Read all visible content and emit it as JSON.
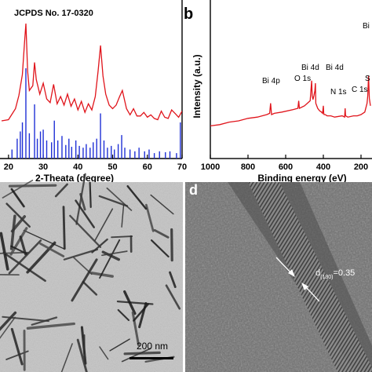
{
  "panel_a": {
    "reference_label": "JCPDS No. 17-0320",
    "xlabel": "2-Theata (degree)",
    "x_ticks": [
      "20",
      "30",
      "40",
      "50",
      "60",
      "70"
    ]
  },
  "panel_b": {
    "letter": "b",
    "ylabel": "Intensity (a.u.)",
    "xlabel": "Binding energy (eV)",
    "x_ticks": [
      "1000",
      "800",
      "600",
      "400",
      "200"
    ],
    "annotations": [
      "Bi 4p",
      "O 1s",
      "Bi 4d",
      "Bi 4d",
      "N 1s",
      "C 1s",
      "S",
      "Bi"
    ]
  },
  "panel_c": {
    "scale_bar": "200 nm"
  },
  "panel_d": {
    "letter": "d",
    "d_symbol": "d",
    "d_subscript": "(130)",
    "d_value": "=0.35"
  },
  "chart_data": [
    {
      "type": "line",
      "panel": "a",
      "xlabel": "2-Theata (degree)",
      "xlim": [
        18,
        70
      ],
      "series": [
        {
          "x": [
            18,
            20,
            22,
            23,
            24,
            24.6,
            25,
            25.5,
            26,
            27,
            27.5,
            28,
            29,
            30,
            31,
            32,
            33,
            34,
            35,
            36,
            37,
            38,
            39,
            40,
            41,
            42,
            43,
            44,
            45,
            45.8,
            46.5,
            47.2,
            48,
            49,
            50,
            51,
            52,
            52.8,
            54,
            55,
            56,
            57,
            58,
            59,
            60,
            61,
            62,
            63,
            64,
            65,
            66,
            67,
            68,
            69,
            70
          ],
          "y": [
            0.2,
            0.22,
            0.3,
            0.42,
            0.58,
            0.85,
            1.0,
            0.62,
            0.45,
            0.5,
            0.68,
            0.55,
            0.42,
            0.52,
            0.38,
            0.36,
            0.5,
            0.35,
            0.4,
            0.34,
            0.42,
            0.33,
            0.38,
            0.3,
            0.36,
            0.28,
            0.34,
            0.3,
            0.4,
            0.62,
            0.82,
            0.58,
            0.42,
            0.34,
            0.3,
            0.34,
            0.4,
            0.46,
            0.3,
            0.26,
            0.3,
            0.25,
            0.24,
            0.28,
            0.23,
            0.26,
            0.22,
            0.22,
            0.28,
            0.24,
            0.22,
            0.3,
            0.26,
            0.24,
            0.28
          ]
        }
      ],
      "reference_peaks": {
        "x": [
          21,
          22.5,
          23.4,
          24,
          25,
          26,
          27.5,
          28.3,
          29.2,
          30,
          31,
          32.4,
          33.2,
          34.2,
          35.4,
          36.5,
          37.4,
          38.2,
          39.4,
          40.4,
          41.5,
          42.4,
          43.5,
          44.4,
          45.4,
          46.5,
          47.5,
          48.5,
          49.6,
          50.5,
          51.6,
          52.6,
          53.5,
          55,
          56.4,
          57.6,
          59.2,
          60.5,
          62,
          63.5,
          65.2,
          66.5,
          68.4,
          69.5
        ],
        "y": [
          0.1,
          0.22,
          0.3,
          0.4,
          1.0,
          0.28,
          0.6,
          0.22,
          0.3,
          0.32,
          0.2,
          0.18,
          0.42,
          0.2,
          0.25,
          0.15,
          0.22,
          0.13,
          0.2,
          0.14,
          0.12,
          0.16,
          0.12,
          0.18,
          0.22,
          0.5,
          0.2,
          0.12,
          0.14,
          0.1,
          0.16,
          0.26,
          0.12,
          0.1,
          0.08,
          0.12,
          0.08,
          0.1,
          0.06,
          0.08,
          0.07,
          0.08,
          0.06,
          0.4
        ]
      }
    },
    {
      "type": "line",
      "panel": "b",
      "xlabel": "Binding energy (eV)",
      "ylabel": "Intensity (a.u.)",
      "xlim": [
        1000,
        150
      ],
      "ylim": [
        0,
        1
      ],
      "series": [
        {
          "x": [
            1000,
            950,
            900,
            850,
            800,
            750,
            700,
            685,
            680,
            675,
            660,
            620,
            560,
            535,
            531,
            527,
            500,
            470,
            465,
            462,
            459,
            455,
            450,
            445,
            442,
            440,
            430,
            420,
            410,
            404,
            400,
            398,
            396,
            390,
            380,
            360,
            340,
            300,
            287,
            284,
            282,
            270,
            240,
            220,
            200,
            180,
            168,
            164,
            160,
            156,
            150
          ],
          "y": [
            0.06,
            0.07,
            0.09,
            0.1,
            0.12,
            0.13,
            0.15,
            0.16,
            0.24,
            0.15,
            0.16,
            0.17,
            0.19,
            0.2,
            0.26,
            0.2,
            0.22,
            0.26,
            0.36,
            0.42,
            0.3,
            0.27,
            0.3,
            0.34,
            0.4,
            0.24,
            0.2,
            0.18,
            0.17,
            0.16,
            0.22,
            0.16,
            0.15,
            0.15,
            0.14,
            0.14,
            0.13,
            0.14,
            0.13,
            0.2,
            0.14,
            0.13,
            0.14,
            0.14,
            0.15,
            0.17,
            0.24,
            0.3,
            0.46,
            0.28,
            0.22
          ]
        }
      ]
    }
  ]
}
